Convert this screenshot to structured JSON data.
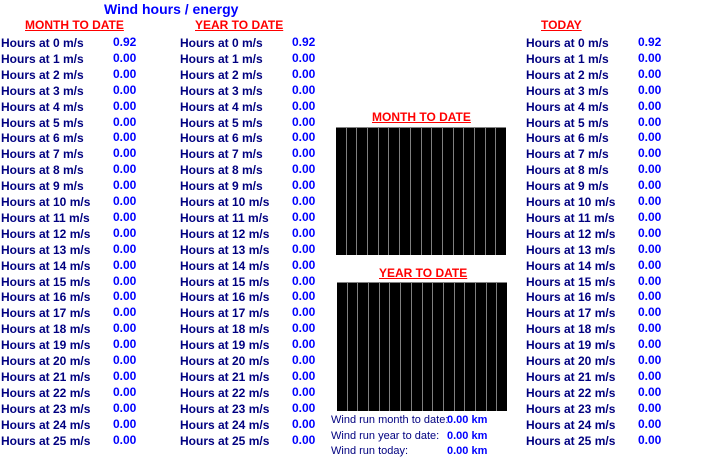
{
  "title": "Wind hours / energy",
  "columns": [
    {
      "id": "month",
      "header": "MONTH TO DATE",
      "labels": [
        "Hours at 0 m/s",
        "Hours at 1 m/s",
        "Hours at 2 m/s",
        "Hours at 3 m/s",
        "Hours at 4 m/s",
        "Hours at 5 m/s",
        "Hours at 6 m/s",
        "Hours at 7 m/s",
        "Hours at 8 m/s",
        "Hours at 9 m/s",
        "Hours at 10 m/s",
        "Hours at 11 m/s",
        "Hours at 12 m/s",
        "Hours at 13 m/s",
        "Hours at 14 m/s",
        "Hours at 15 m/s",
        "Hours at 16 m/s",
        "Hours at 17 m/s",
        "Hours at 18 m/s",
        "Hours at 19 m/s",
        "Hours at 20 m/s",
        "Hours at 21 m/s",
        "Hours at 22 m/s",
        "Hours at 23 m/s",
        "Hours at 24 m/s",
        "Hours at 25 m/s"
      ],
      "values": [
        "0.92",
        "0.00",
        "0.00",
        "0.00",
        "0.00",
        "0.00",
        "0.00",
        "0.00",
        "0.00",
        "0.00",
        "0.00",
        "0.00",
        "0.00",
        "0.00",
        "0.00",
        "0.00",
        "0.00",
        "0.00",
        "0.00",
        "0.00",
        "0.00",
        "0.00",
        "0.00",
        "0.00",
        "0.00",
        "0.00"
      ]
    },
    {
      "id": "year",
      "header": "YEAR TO DATE",
      "labels": [
        "Hours at 0 m/s",
        "Hours at 1 m/s",
        "Hours at 2 m/s",
        "Hours at 3 m/s",
        "Hours at 4 m/s",
        "Hours at 5 m/s",
        "Hours at 6 m/s",
        "Hours at 7 m/s",
        "Hours at 8 m/s",
        "Hours at 9 m/s",
        "Hours at 10 m/s",
        "Hours at 11 m/s",
        "Hours at 12 m/s",
        "Hours at 13 m/s",
        "Hours at 14 m/s",
        "Hours at 15 m/s",
        "Hours at 16 m/s",
        "Hours at 17 m/s",
        "Hours at 18 m/s",
        "Hours at 19 m/s",
        "Hours at 20 m/s",
        "Hours at 21 m/s",
        "Hours at 22 m/s",
        "Hours at 23 m/s",
        "Hours at 24 m/s",
        "Hours at 25 m/s"
      ],
      "values": [
        "0.92",
        "0.00",
        "0.00",
        "0.00",
        "0.00",
        "0.00",
        "0.00",
        "0.00",
        "0.00",
        "0.00",
        "0.00",
        "0.00",
        "0.00",
        "0.00",
        "0.00",
        "0.00",
        "0.00",
        "0.00",
        "0.00",
        "0.00",
        "0.00",
        "0.00",
        "0.00",
        "0.00",
        "0.00",
        "0.00"
      ]
    },
    {
      "id": "today",
      "header": "TODAY",
      "labels": [
        "Hours at 0 m/s",
        "Hours at 1 m/s",
        "Hours at 2 m/s",
        "Hours at 3 m/s",
        "Hours at 4 m/s",
        "Hours at 5 m/s",
        "Hours at 6 m/s",
        "Hours at 7 m/s",
        "Hours at 8 m/s",
        "Hours at 9 m/s",
        "Hours at 10 m/s",
        "Hours at 11 m/s",
        "Hours at 12 m/s",
        "Hours at 13 m/s",
        "Hours at 14 m/s",
        "Hours at 15 m/s",
        "Hours at 16 m/s",
        "Hours at 17 m/s",
        "Hours at 18 m/s",
        "Hours at 19 m/s",
        "Hours at 20 m/s",
        "Hours at 21 m/s",
        "Hours at 22 m/s",
        "Hours at 23 m/s",
        "Hours at 24 m/s",
        "Hours at 25 m/s"
      ],
      "values": [
        "0.92",
        "0.00",
        "0.00",
        "0.00",
        "0.00",
        "0.00",
        "0.00",
        "0.00",
        "0.00",
        "0.00",
        "0.00",
        "0.00",
        "0.00",
        "0.00",
        "0.00",
        "0.00",
        "0.00",
        "0.00",
        "0.00",
        "0.00",
        "0.00",
        "0.00",
        "0.00",
        "0.00",
        "0.00",
        "0.00"
      ]
    }
  ],
  "charts": {
    "month_title": "MONTH TO DATE",
    "year_title": "YEAR TO DATE"
  },
  "wind_run": {
    "month_label": "Wind run month to date:",
    "month_value": "0.00 km",
    "year_label": "Wind run year to date:",
    "year_value": "0.00 km",
    "today_label": "Wind run today:",
    "today_value": "0.00 km"
  },
  "colors": {
    "label": "#000080",
    "value": "#0000ff",
    "header": "#ff0000",
    "chart_bg": "#000000",
    "chart_grid": "#808080"
  }
}
